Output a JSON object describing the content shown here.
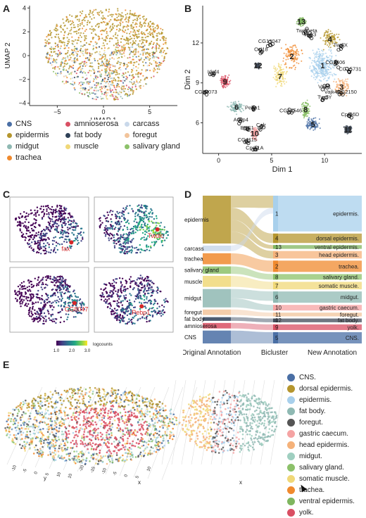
{
  "panels": {
    "A": "A",
    "B": "B",
    "C": "C",
    "D": "D",
    "E": "E"
  },
  "chart_data": [
    {
      "id": "A",
      "type": "scatter",
      "xlabel": "UMAP 1",
      "ylabel": "UMAP 2",
      "xticks": [
        -5,
        0,
        5
      ],
      "yticks": [
        -4,
        -2,
        0,
        2,
        4
      ],
      "xlim": [
        -8,
        8
      ],
      "ylim": [
        -4.2,
        4.2
      ],
      "legend": [
        {
          "name": "CNS",
          "color": "#4a6fa5"
        },
        {
          "name": "amnioserosa",
          "color": "#d94f63"
        },
        {
          "name": "carcass",
          "color": "#c9d8ea"
        },
        {
          "name": "epidermis",
          "color": "#b5962e"
        },
        {
          "name": "fat body",
          "color": "#2e4057"
        },
        {
          "name": "foregut",
          "color": "#f2c49b"
        },
        {
          "name": "midgut",
          "color": "#8fb9b3"
        },
        {
          "name": "muscle",
          "color": "#f0d878"
        },
        {
          "name": "salivary gland",
          "color": "#8cc16a"
        },
        {
          "name": "trachea",
          "color": "#f08a2e"
        }
      ]
    },
    {
      "id": "B",
      "type": "scatter",
      "xlabel": "Dim 1",
      "ylabel": "Dim 2",
      "xticks": [
        0,
        5,
        10
      ],
      "yticks": [
        6,
        9,
        12
      ],
      "xlim": [
        -1.5,
        13.5
      ],
      "ylim": [
        3.7,
        14.8
      ],
      "clusters": [
        {
          "label": "1",
          "x": 9.8,
          "y": 10.3
        },
        {
          "label": "2",
          "x": 6.9,
          "y": 11.0
        },
        {
          "label": "3",
          "x": 11.6,
          "y": 8.7
        },
        {
          "label": "4",
          "x": 10.5,
          "y": 12.3
        },
        {
          "label": "5",
          "x": 8.9,
          "y": 5.9
        },
        {
          "label": "6",
          "x": 1.7,
          "y": 7.2
        },
        {
          "label": "7",
          "x": 5.8,
          "y": 9.5
        },
        {
          "label": "8",
          "x": 8.2,
          "y": 7.0
        },
        {
          "label": "9",
          "x": 0.6,
          "y": 9.1
        },
        {
          "label": "10",
          "x": 3.4,
          "y": 5.2
        },
        {
          "label": "11",
          "x": 12.2,
          "y": 5.5
        },
        {
          "label": "12",
          "x": 3.7,
          "y": 10.3
        },
        {
          "label": "13",
          "x": 7.8,
          "y": 13.6
        }
      ],
      "genes": [
        {
          "label": "Twdlbeta",
          "x": 8.3,
          "y": 12.8
        },
        {
          "label": "Vajk3",
          "x": 8.6,
          "y": 12.5
        },
        {
          "label": "CG13047",
          "x": 4.8,
          "y": 12.0
        },
        {
          "label": "Osi18",
          "x": 4.0,
          "y": 11.4
        },
        {
          "label": "TwdlX",
          "x": 11.5,
          "y": 11.7
        },
        {
          "label": "CG7406",
          "x": 11.0,
          "y": 10.4
        },
        {
          "label": "CG15731",
          "x": 12.4,
          "y": 9.9
        },
        {
          "label": "Vajk1",
          "x": 10.0,
          "y": 8.6
        },
        {
          "label": "Vajk4CG2150",
          "x": 11.5,
          "y": 8.2
        },
        {
          "label": "TwdlY",
          "x": 10.0,
          "y": 7.8
        },
        {
          "label": "Idgf4",
          "x": -0.5,
          "y": 9.7
        },
        {
          "label": "CG32073",
          "x": -1.2,
          "y": 8.2
        },
        {
          "label": "Pebp1",
          "x": 3.2,
          "y": 7.0
        },
        {
          "label": "Acbp4",
          "x": 2.1,
          "y": 6.1
        },
        {
          "label": "BBS1",
          "x": 2.7,
          "y": 5.5
        },
        {
          "label": "Calr",
          "x": 4.0,
          "y": 5.7
        },
        {
          "label": "CG12546",
          "x": 6.8,
          "y": 6.8
        },
        {
          "label": "CG4115",
          "x": 2.7,
          "y": 4.6
        },
        {
          "label": "Cpr51A",
          "x": 3.4,
          "y": 4.0
        },
        {
          "label": "Cpr66D",
          "x": 12.4,
          "y": 6.5
        }
      ]
    },
    {
      "id": "C",
      "type": "scatter",
      "subplots": [
        "fax",
        "Twdlc",
        "CG8047",
        "Pebp1"
      ],
      "colorbar": {
        "label": "logcounts",
        "ticks": [
          "1.0",
          "2.0",
          "3.0"
        ],
        "min": 1.0,
        "max": 3.0
      }
    },
    {
      "id": "D",
      "type": "sankey",
      "xlabels": [
        "Original Annotation",
        "Bicluster",
        "New Annotation"
      ],
      "left": [
        {
          "name": "epidermis",
          "color": "#b5962e",
          "value": 26
        },
        {
          "name": "carcass",
          "color": "#c9d8ea",
          "value": 3
        },
        {
          "name": "trachea",
          "color": "#f08a2e",
          "value": 6
        },
        {
          "name": "salivary gland",
          "color": "#8cc16a",
          "value": 4
        },
        {
          "name": "muscle",
          "color": "#f0d878",
          "value": 6
        },
        {
          "name": "midgut",
          "color": "#8fb9b3",
          "value": 10
        },
        {
          "name": "foregut",
          "color": "#f2c49b",
          "value": 3
        },
        {
          "name": "fat body",
          "color": "#2e4057",
          "value": 2
        },
        {
          "name": "amnioserosa",
          "color": "#d94f63",
          "value": 3
        },
        {
          "name": "CNS",
          "color": "#4a6fa5",
          "value": 7
        }
      ],
      "right": [
        {
          "id": "1",
          "name": "epidermis.",
          "color": "#a8d0ec",
          "value": 19
        },
        {
          "id": "4",
          "name": "dorsal epidermis.",
          "color": "#b5962e",
          "value": 5
        },
        {
          "id": "13",
          "name": "ventral epidermis.",
          "color": "#7fb65f",
          "value": 2
        },
        {
          "id": "3",
          "name": "head epidermis.",
          "color": "#f5b27a",
          "value": 4
        },
        {
          "id": "2",
          "name": "trachea.",
          "color": "#f08a2e",
          "value": 6
        },
        {
          "id": "8",
          "name": "salivary gland.",
          "color": "#8cc16a",
          "value": 3
        },
        {
          "id": "7",
          "name": "somatic muscle.",
          "color": "#f0d878",
          "value": 4
        },
        {
          "id": "6",
          "name": "midgut.",
          "color": "#8fb9b3",
          "value": 6
        },
        {
          "id": "10",
          "name": "gastric caecum.",
          "color": "#f5a3a3",
          "value": 3
        },
        {
          "id": "11",
          "name": "foregut.",
          "color": "#f2c49b",
          "value": 2
        },
        {
          "id": "12",
          "name": "fat body.",
          "color": "#404a58",
          "value": 2
        },
        {
          "id": "9",
          "name": "yolk.",
          "color": "#d94f63",
          "value": 3
        },
        {
          "id": "5",
          "name": "CNS.",
          "color": "#4a6fa5",
          "value": 6
        }
      ]
    },
    {
      "id": "E",
      "type": "scatter",
      "axes": [
        "y",
        "x",
        "x"
      ],
      "ticks_left": [
        "-10",
        "-5",
        "0",
        "5",
        "10",
        "15",
        "-20",
        "-15",
        "-10",
        "-5",
        "0",
        "5",
        "10"
      ],
      "legend": [
        {
          "name": "CNS.",
          "color": "#4a6fa5"
        },
        {
          "name": "dorsal epidermis.",
          "color": "#b5962e"
        },
        {
          "name": "epidermis.",
          "color": "#a8d0ec"
        },
        {
          "name": "fat body.",
          "color": "#8fb9b3"
        },
        {
          "name": "foregut.",
          "color": "#555555"
        },
        {
          "name": "gastric caecum.",
          "color": "#f5a3a3"
        },
        {
          "name": "head epidermis.",
          "color": "#f5b27a"
        },
        {
          "name": "midgut.",
          "color": "#9fcfc0"
        },
        {
          "name": "salivary gland.",
          "color": "#8cc16a"
        },
        {
          "name": "somatic muscle.",
          "color": "#f0d878"
        },
        {
          "name": "trachea.",
          "color": "#f08a2e"
        },
        {
          "name": "ventral epidermis.",
          "color": "#7fb65f"
        },
        {
          "name": "yolk.",
          "color": "#d94f63"
        }
      ]
    }
  ]
}
